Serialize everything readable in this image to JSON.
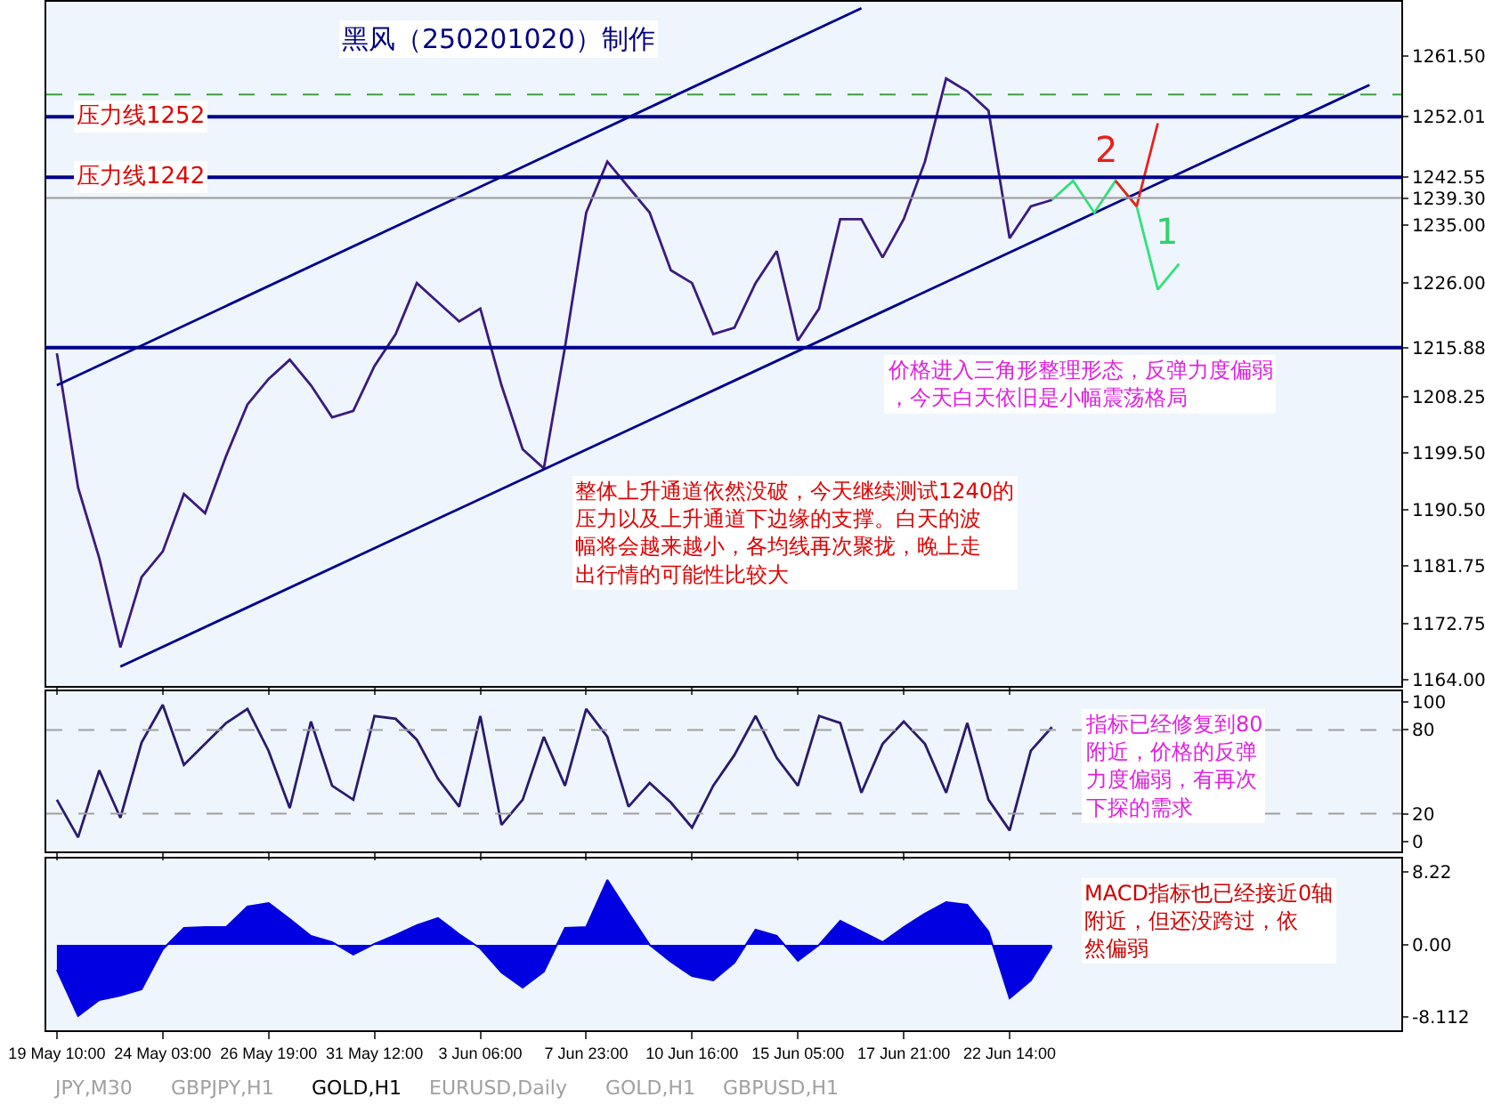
{
  "chart_data": [
    {
      "type": "line",
      "title": "黑风（250201020）制作",
      "ylim": [
        1163,
        1270
      ],
      "tick_labels": "y",
      "grid": false,
      "categories": [
        "19 May 10:00",
        null,
        null,
        null,
        null,
        "24 May 03:00",
        null,
        null,
        null,
        null,
        "26 May 19:00",
        null,
        null,
        null,
        null,
        "31 May 12:00",
        null,
        null,
        null,
        null,
        "3 Jun 06:00",
        null,
        null,
        null,
        null,
        "7 Jun 23:00",
        null,
        null,
        null,
        null,
        "10 Jun 16:00",
        null,
        null,
        null,
        null,
        "15 Jun 05:00",
        null,
        null,
        null,
        null,
        "17 Jun 21:00",
        null,
        null,
        null,
        null,
        "22 Jun 14:00",
        null,
        null,
        null,
        null,
        null,
        null,
        null,
        null,
        null,
        null,
        null,
        null,
        null,
        null,
        null,
        null,
        null,
        null
      ],
      "yticks": [
        {
          "value": 1164,
          "label": "1164.00"
        },
        {
          "value": 1172.75,
          "label": "1172.75"
        },
        {
          "value": 1181.75,
          "label": "1181.75"
        },
        {
          "value": 1190.5,
          "label": "1190.50"
        },
        {
          "value": 1199.5,
          "label": "1199.50"
        },
        {
          "value": 1208.25,
          "label": "1208.25"
        },
        {
          "value": 1215.88,
          "label": "1215.88"
        },
        {
          "value": 1226,
          "label": "1226.00"
        },
        {
          "value": 1235,
          "label": "1235.00"
        },
        {
          "value": 1239.3,
          "label": "1239.30"
        },
        {
          "value": 1242.55,
          "label": "1242.55"
        },
        {
          "value": 1252.01,
          "label": "1252.01"
        },
        {
          "value": 1261.5,
          "label": "1261.50"
        }
      ],
      "series": [
        {
          "color": "#3b1a80",
          "values": [
            1215,
            1194,
            1183,
            1169,
            1180,
            1184,
            1193,
            1190,
            1199,
            1207,
            1211,
            1214,
            1210,
            1205,
            1206,
            1213,
            1218,
            1226,
            1223,
            1220,
            1222,
            1210,
            1200,
            1197,
            1216,
            1237,
            1245,
            1241,
            1237,
            1228,
            1226,
            1218,
            1219,
            1226,
            1231,
            1217,
            1222,
            1236,
            1236,
            1230,
            1236,
            1245,
            1258,
            1256,
            1253,
            1233,
            1238,
            1239,
            null,
            null,
            null,
            null,
            null,
            null,
            null,
            null,
            null,
            null,
            null,
            null,
            null,
            null,
            null,
            null
          ]
        },
        {
          "color": "#00008b",
          "values": [
            1210,
            null,
            null,
            null,
            null,
            null,
            null,
            null,
            null,
            null,
            null,
            null,
            null,
            null,
            null,
            null,
            null,
            null,
            null,
            null,
            null,
            null,
            null,
            null,
            null,
            null,
            null,
            null,
            null,
            null,
            null,
            null,
            null,
            null,
            null,
            null,
            null,
            null,
            1269,
            null,
            null,
            null,
            null,
            null,
            null,
            null,
            null,
            null,
            null,
            null,
            null,
            null,
            null,
            null,
            null,
            null,
            null,
            null,
            null,
            null,
            null,
            null,
            null,
            null
          ]
        },
        {
          "color": "#00008b",
          "values": [
            null,
            null,
            null,
            1166,
            null,
            null,
            null,
            null,
            null,
            null,
            null,
            null,
            null,
            null,
            null,
            null,
            null,
            null,
            null,
            null,
            null,
            null,
            null,
            null,
            null,
            null,
            null,
            null,
            null,
            null,
            null,
            null,
            null,
            null,
            null,
            null,
            null,
            null,
            null,
            null,
            null,
            null,
            null,
            null,
            null,
            null,
            null,
            null,
            null,
            null,
            null,
            null,
            null,
            null,
            null,
            null,
            null,
            null,
            null,
            null,
            null,
            null,
            1257,
            null
          ]
        },
        {
          "color": "#33e07a",
          "values": [
            null,
            null,
            null,
            null,
            null,
            null,
            null,
            null,
            null,
            null,
            null,
            null,
            null,
            null,
            null,
            null,
            null,
            null,
            null,
            null,
            null,
            null,
            null,
            null,
            null,
            null,
            null,
            null,
            null,
            null,
            null,
            null,
            null,
            null,
            null,
            null,
            null,
            null,
            null,
            null,
            null,
            null,
            null,
            null,
            null,
            null,
            null,
            1239,
            1242,
            1237,
            1242,
            1238,
            1225,
            1229,
            null,
            null,
            null,
            null,
            null,
            null,
            null,
            null,
            null,
            null
          ]
        },
        {
          "color": "#e8201c",
          "values": [
            null,
            null,
            null,
            null,
            null,
            null,
            null,
            null,
            null,
            null,
            null,
            null,
            null,
            null,
            null,
            null,
            null,
            null,
            null,
            null,
            null,
            null,
            null,
            null,
            null,
            null,
            null,
            null,
            null,
            null,
            null,
            null,
            null,
            null,
            null,
            null,
            null,
            null,
            null,
            null,
            null,
            null,
            null,
            null,
            null,
            null,
            null,
            null,
            null,
            null,
            1242,
            1238,
            1251,
            null,
            null,
            null,
            null,
            null,
            null,
            null,
            null,
            null,
            null,
            null
          ]
        }
      ],
      "ref_lines": [
        {
          "axis": "y",
          "value": 1252.01,
          "label": "压力线1252",
          "color": "#00008b",
          "line_style": "solid"
        },
        {
          "axis": "y",
          "value": 1242.55,
          "label": "压力线1242",
          "color": "#00008b",
          "line_style": "solid"
        },
        {
          "axis": "y",
          "value": 1215.88,
          "color": "#00008b",
          "line_style": "solid"
        },
        {
          "axis": "y",
          "value": 1239.3,
          "color": "#9a9a9a",
          "line_style": "solid"
        },
        {
          "axis": "y",
          "value": 1255.5,
          "color": "#40a040",
          "line_style": "dashed"
        }
      ],
      "annotations": [
        "2",
        "1",
        "整体上升通道依然没破，今天继续测试1240的压力以及上升通道下边缘的支撑。白天的波幅将会越来越小，各均线再次聚拢，晚上走出行情的可能性比较大",
        "价格进入三角形整理形态，反弹力度偏弱，今天白天依旧是小幅震荡格局"
      ]
    },
    {
      "type": "line",
      "ylim": [
        -7,
        108
      ],
      "tick_labels": "y",
      "grid": false,
      "categories": [
        "19 May 10:00",
        null,
        null,
        null,
        null,
        "24 May 03:00",
        null,
        null,
        null,
        null,
        "26 May 19:00",
        null,
        null,
        null,
        null,
        "31 May 12:00",
        null,
        null,
        null,
        null,
        "3 Jun 06:00",
        null,
        null,
        null,
        null,
        "7 Jun 23:00",
        null,
        null,
        null,
        null,
        "10 Jun 16:00",
        null,
        null,
        null,
        null,
        "15 Jun 05:00",
        null,
        null,
        null,
        null,
        "17 Jun 21:00",
        null,
        null,
        null,
        null,
        "22 Jun 14:00",
        null,
        null,
        null,
        null,
        null,
        null,
        null,
        null,
        null,
        null,
        null,
        null,
        null,
        null,
        null,
        null,
        null,
        null
      ],
      "yticks": [
        0,
        20,
        80,
        100
      ],
      "series": [
        {
          "color": "#2a1a6e",
          "values": [
            30,
            3,
            51,
            17,
            71,
            98,
            55,
            70,
            85,
            95,
            65,
            24,
            86,
            40,
            30,
            90,
            88,
            73,
            45,
            25,
            90,
            12,
            30,
            75,
            40,
            95,
            75,
            25,
            42,
            28,
            10,
            40,
            62,
            90,
            60,
            40,
            90,
            85,
            35,
            70,
            86,
            70,
            35,
            85,
            30,
            8,
            65,
            82,
            null,
            null,
            null,
            null,
            null,
            null,
            null,
            null,
            null,
            null,
            null,
            null,
            null,
            null,
            null,
            null
          ]
        }
      ],
      "ref_lines": [
        {
          "axis": "y",
          "value": 20,
          "color": "#a0a0a0",
          "line_style": "dashed"
        },
        {
          "axis": "y",
          "value": 80,
          "color": "#a0a0a0",
          "line_style": "dashed"
        }
      ],
      "annotations": [
        "指标已经修复到80附近，价格的反弹力度偏弱，有再次下探的需求"
      ]
    },
    {
      "type": "area",
      "ylim": [
        -9.6,
        9.7
      ],
      "grid": false,
      "categories": [
        "19 May 10:00",
        null,
        null,
        null,
        null,
        "24 May 03:00",
        null,
        null,
        null,
        null,
        "26 May 19:00",
        null,
        null,
        null,
        null,
        "31 May 12:00",
        null,
        null,
        null,
        null,
        "3 Jun 06:00",
        null,
        null,
        null,
        null,
        "7 Jun 23:00",
        null,
        null,
        null,
        null,
        "10 Jun 16:00",
        null,
        null,
        null,
        null,
        "15 Jun 05:00",
        null,
        null,
        null,
        null,
        "17 Jun 21:00",
        null,
        null,
        null,
        null,
        "22 Jun 14:00",
        null,
        null,
        null,
        null,
        null,
        null,
        null,
        null,
        null,
        null,
        null,
        null,
        null,
        null,
        null,
        null,
        null,
        null
      ],
      "yticks": [
        {
          "value": 8.22,
          "label": "8.22"
        },
        {
          "value": 0,
          "label": "0.00"
        },
        {
          "value": -8.112,
          "label": "-8.112"
        }
      ],
      "series": [
        {
          "color": "#0000e0",
          "values": [
            -2.8,
            -8.0,
            -6.2,
            -5.7,
            -5.0,
            -0.5,
            1.9,
            2.0,
            2.0,
            4.3,
            4.7,
            2.9,
            1.0,
            0.3,
            -1.1,
            0.1,
            1.1,
            2.2,
            3.0,
            1.2,
            -0.4,
            -3.1,
            -4.8,
            -3.0,
            1.9,
            2.0,
            7.3,
            3.6,
            0.0,
            -1.9,
            -3.5,
            -4.0,
            -2.0,
            1.7,
            1.0,
            -1.8,
            0.0,
            2.7,
            1.5,
            0.3,
            2.0,
            3.5,
            4.8,
            4.5,
            1.5,
            -6.0,
            -4.0,
            -0.2,
            null,
            null,
            null,
            null,
            null,
            null,
            null,
            null,
            null,
            null,
            null,
            null,
            null,
            null,
            null,
            null
          ]
        }
      ],
      "annotations": [
        "MACD指标也已经接近0轴附近，但还没跨过，依然偏弱",
        "JPY,M30",
        "GBPJPY,H1",
        "GOLD,H1",
        "EURUSD,Daily",
        "GOLD,H1",
        "GBPUSD,H1"
      ]
    }
  ]
}
